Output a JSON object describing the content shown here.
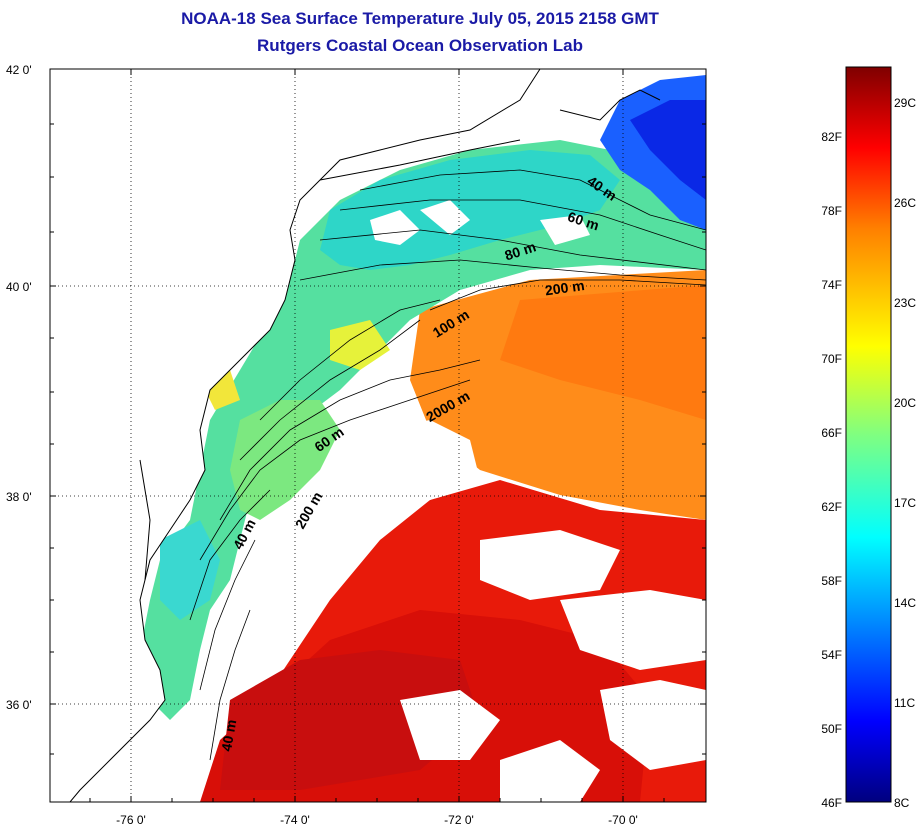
{
  "header": {
    "title": "NOAA-18 Sea Surface Temperature July 05, 2015 2158 GMT",
    "subtitle": "Rutgers Coastal Ocean Observation Lab"
  },
  "map": {
    "lat_labels": [
      "42 0'",
      "40 0'",
      "38 0'",
      "36 0'"
    ],
    "lon_labels": [
      "-76 0'",
      "-74 0'",
      "-72 0'",
      "-70 0'"
    ],
    "contour_labels": [
      "40 m",
      "60 m",
      "80 m",
      "200 m",
      "100 m",
      "2000 m",
      "60 m",
      "200 m",
      "40 m",
      "40 m"
    ],
    "grid": "dotted"
  },
  "colorbar": {
    "fahrenheit_labels": [
      "82F",
      "78F",
      "74F",
      "70F",
      "66F",
      "62F",
      "58F",
      "54F",
      "50F",
      "46F"
    ],
    "celsius_labels": [
      "29C",
      "26C",
      "23C",
      "20C",
      "17C",
      "14C",
      "11C",
      "8C"
    ],
    "range_c": [
      8,
      30
    ],
    "colormap": "jet",
    "colors": [
      "#00007f",
      "#0000ff",
      "#0080ff",
      "#00ffff",
      "#80ff80",
      "#ffff00",
      "#ff8000",
      "#ff0000",
      "#7f0000"
    ]
  }
}
